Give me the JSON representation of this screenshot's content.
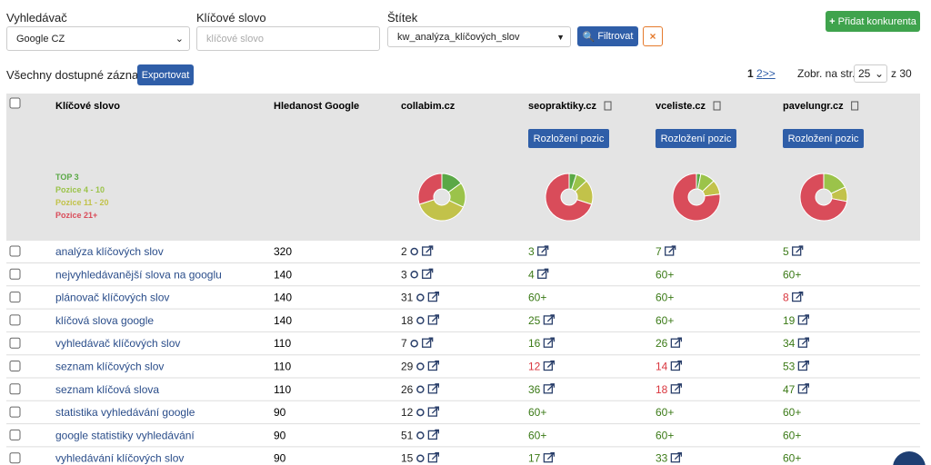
{
  "filters": {
    "engine_label": "Vyhledávač",
    "engine_value": "Google CZ",
    "keyword_label": "Klíčové slovo",
    "keyword_placeholder": "klíčové slovo",
    "tag_label": "Štítek",
    "tag_value": "kw_analýza_klíčových_slov",
    "filter_button": "Filtrovat"
  },
  "add_competitor": "Přidat konkurenta",
  "records_label": "Všechny dostupné záznamy",
  "export_button": "Exportovat",
  "pagination": {
    "current": "1",
    "next": "2",
    "forward": ">>",
    "per_page_label": "Zobr. na str.",
    "per_page": "25",
    "total": "z 30"
  },
  "table": {
    "headers": {
      "keyword": "Klíčové slovo",
      "volume": "Hledanost Google"
    },
    "distribution_button": "Rozložení pozic",
    "legend": [
      {
        "label": "TOP 3",
        "color": "#5aa846"
      },
      {
        "label": "Pozice 4 - 10",
        "color": "#9bc34a"
      },
      {
        "label": "Pozice 11 - 20",
        "color": "#c2c24a"
      },
      {
        "label": "Pozice 21+",
        "color": "#d94c5a"
      }
    ],
    "competitors": [
      {
        "name": "collabim.cz",
        "deletable": false,
        "distribution": [
          15,
          17,
          38,
          30
        ]
      },
      {
        "name": "seopraktiky.cz",
        "deletable": true,
        "distribution": [
          5,
          8,
          17,
          70
        ]
      },
      {
        "name": "vceliste.cz",
        "deletable": true,
        "distribution": [
          3,
          10,
          10,
          77
        ]
      },
      {
        "name": "pavelungr.cz",
        "deletable": true,
        "distribution": [
          0,
          18,
          10,
          72
        ]
      }
    ],
    "rows": [
      {
        "keyword": "analýza klíčových slov",
        "volume": 320,
        "positions": [
          {
            "text": "2",
            "color": "#222"
          },
          {
            "text": "3",
            "color": "#3b7a17"
          },
          {
            "text": "7",
            "color": "#3b7a17"
          },
          {
            "text": "5",
            "color": "#3b7a17"
          }
        ]
      },
      {
        "keyword": "nejvyhledávanější slova na googlu",
        "volume": 140,
        "positions": [
          {
            "text": "3",
            "color": "#222"
          },
          {
            "text": "4",
            "color": "#3b7a17"
          },
          {
            "text": "60+",
            "color": "#3b7a17"
          },
          {
            "text": "60+",
            "color": "#3b7a17"
          }
        ]
      },
      {
        "keyword": "plánovač klíčových slov",
        "volume": 140,
        "positions": [
          {
            "text": "31",
            "color": "#222"
          },
          {
            "text": "60+",
            "color": "#3b7a17"
          },
          {
            "text": "60+",
            "color": "#3b7a17"
          },
          {
            "text": "8",
            "color": "#d9363e"
          }
        ]
      },
      {
        "keyword": "klíčová slova google",
        "volume": 140,
        "positions": [
          {
            "text": "18",
            "color": "#222"
          },
          {
            "text": "25",
            "color": "#3b7a17"
          },
          {
            "text": "60+",
            "color": "#3b7a17"
          },
          {
            "text": "19",
            "color": "#3b7a17"
          }
        ]
      },
      {
        "keyword": "vyhledávač klíčových slov",
        "volume": 110,
        "positions": [
          {
            "text": "7",
            "color": "#222"
          },
          {
            "text": "16",
            "color": "#3b7a17"
          },
          {
            "text": "26",
            "color": "#3b7a17"
          },
          {
            "text": "34",
            "color": "#3b7a17"
          }
        ]
      },
      {
        "keyword": "seznam klíčových slov",
        "volume": 110,
        "positions": [
          {
            "text": "29",
            "color": "#222"
          },
          {
            "text": "12",
            "color": "#d9363e"
          },
          {
            "text": "14",
            "color": "#d9363e"
          },
          {
            "text": "53",
            "color": "#3b7a17"
          }
        ]
      },
      {
        "keyword": "seznam klíčová slova",
        "volume": 110,
        "positions": [
          {
            "text": "26",
            "color": "#222"
          },
          {
            "text": "36",
            "color": "#3b7a17"
          },
          {
            "text": "18",
            "color": "#d9363e"
          },
          {
            "text": "47",
            "color": "#3b7a17"
          }
        ]
      },
      {
        "keyword": "statistika vyhledávání google",
        "volume": 90,
        "positions": [
          {
            "text": "12",
            "color": "#222"
          },
          {
            "text": "60+",
            "color": "#3b7a17"
          },
          {
            "text": "60+",
            "color": "#3b7a17"
          },
          {
            "text": "60+",
            "color": "#3b7a17"
          }
        ]
      },
      {
        "keyword": "google statistiky vyhledávání",
        "volume": 90,
        "positions": [
          {
            "text": "51",
            "color": "#222"
          },
          {
            "text": "60+",
            "color": "#3b7a17"
          },
          {
            "text": "60+",
            "color": "#3b7a17"
          },
          {
            "text": "60+",
            "color": "#3b7a17"
          }
        ]
      },
      {
        "keyword": "vyhledávání klíčových slov",
        "volume": 90,
        "positions": [
          {
            "text": "15",
            "color": "#222"
          },
          {
            "text": "17",
            "color": "#3b7a17"
          },
          {
            "text": "33",
            "color": "#3b7a17"
          },
          {
            "text": "60+",
            "color": "#3b7a17"
          }
        ]
      }
    ]
  }
}
